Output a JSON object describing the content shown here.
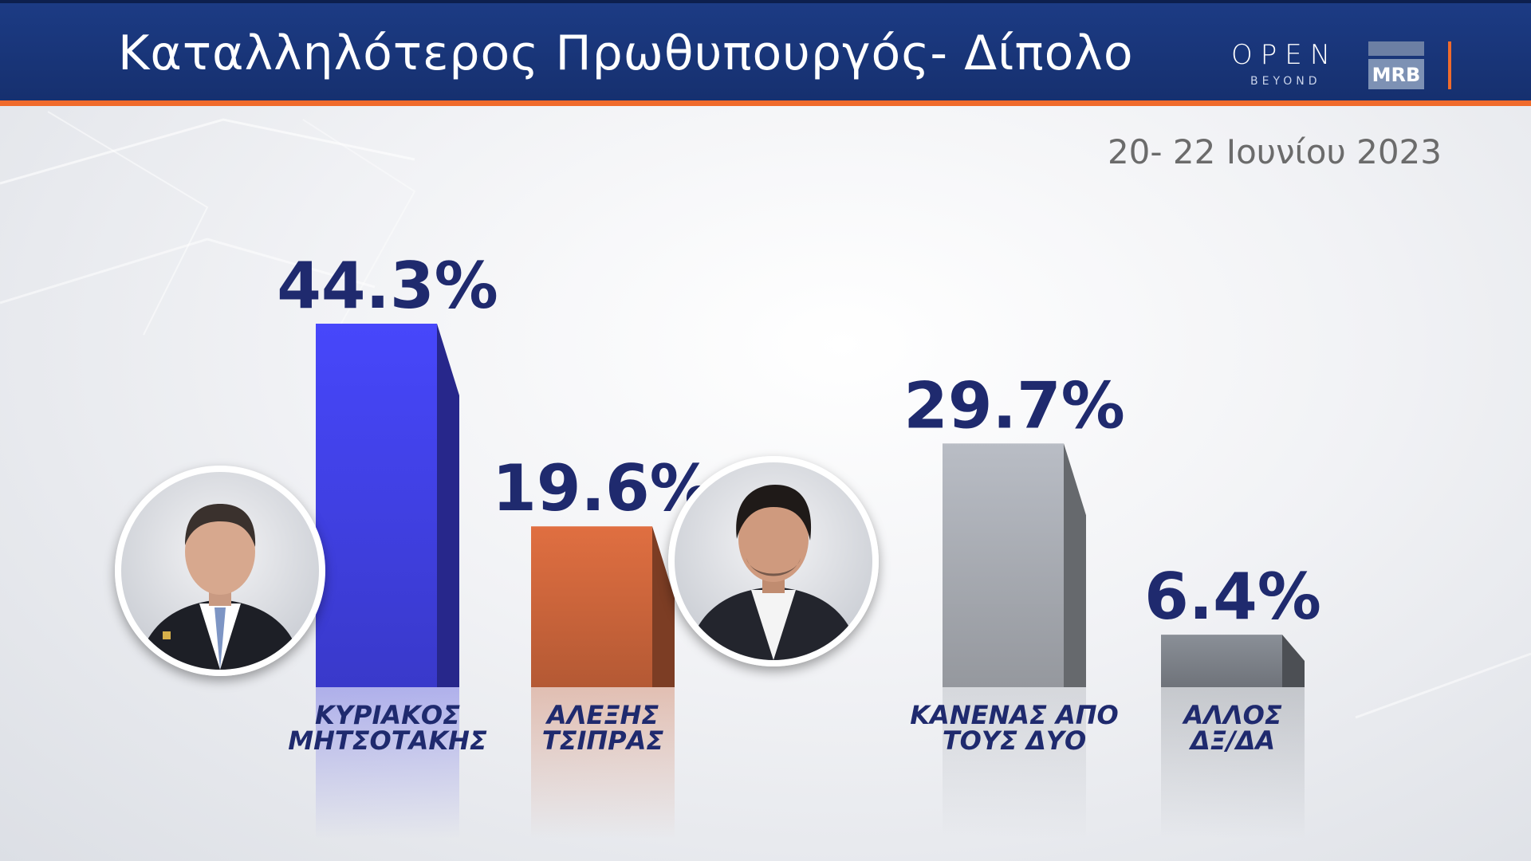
{
  "header": {
    "title": "Καταλληλότερος Πρωθυπουργός- Δίπολο",
    "logo_open": "OPEN",
    "logo_open_sub": "BEYOND",
    "logo_mrb": "MRB",
    "date": "20- 22 Ιουνίου 2023"
  },
  "colors": {
    "header_bg": "#1c3b84",
    "accent_orange": "#f06b2c",
    "value_text": "#1f2a6e"
  },
  "photos": [
    {
      "name": "mitsotakis-photo",
      "icon": "person-portrait"
    },
    {
      "name": "tsipras-photo",
      "icon": "person-portrait"
    }
  ],
  "chart_data": {
    "type": "bar",
    "title": "Καταλληλότερος Πρωθυπουργός- Δίπολο",
    "categories": [
      [
        "ΚΥΡΙΑΚΟΣ",
        "ΜΗΤΣΟΤΑΚΗΣ"
      ],
      [
        "ΑΛΕΞΗΣ",
        "ΤΣΙΠΡΑΣ"
      ],
      [
        "ΚΑΝΕΝΑΣ ΑΠΟ",
        "ΤΟΥΣ ΔΥΟ"
      ],
      [
        "ΑΛΛΟΣ",
        "ΔΞ/ΔΑ"
      ]
    ],
    "values": [
      44.3,
      19.6,
      29.7,
      6.4
    ],
    "value_labels": [
      "44.3%",
      "19.6%",
      "29.7%",
      "6.4%"
    ],
    "colors": [
      "#3f3fe0",
      "#c8633a",
      "#a5a9b0",
      "#7b8087"
    ],
    "unit": "%",
    "ylim": [
      0,
      44.3
    ],
    "grid": false,
    "legend": "none"
  }
}
